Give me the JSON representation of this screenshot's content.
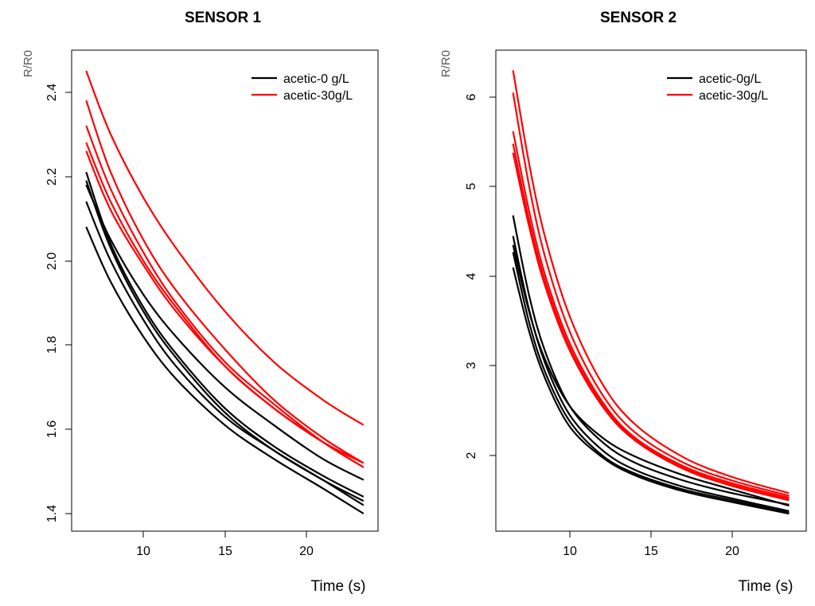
{
  "chart_data": [
    {
      "type": "line",
      "title": "SENSOR 1",
      "xlabel": "Time (s)",
      "ylabel": "R/R0",
      "xlim": [
        5.5,
        24.5
      ],
      "ylim": [
        1.38,
        2.5
      ],
      "xticks": [
        "10",
        "15",
        "20"
      ],
      "yticks": [
        "1.4",
        "1.6",
        "1.8",
        "2.0",
        "2.2",
        "2.4"
      ],
      "legend_position": "top-right",
      "legend": [
        {
          "label": "acetic-0 g/L",
          "color": "#000000"
        },
        {
          "label": "acetic-30g/L",
          "color": "#ff0000"
        }
      ],
      "series": [
        {
          "name": "acetic-0 g/L",
          "color": "#000000",
          "x": [
            6.5,
            8,
            10,
            12,
            15,
            18,
            21,
            23.5
          ],
          "values": [
            2.21,
            2.04,
            1.89,
            1.78,
            1.65,
            1.56,
            1.49,
            1.44
          ]
        },
        {
          "name": "acetic-0 g/L",
          "color": "#000000",
          "x": [
            6.5,
            8,
            10,
            12,
            15,
            18,
            21,
            23.5
          ],
          "values": [
            2.19,
            2.03,
            1.88,
            1.77,
            1.64,
            1.55,
            1.48,
            1.43
          ]
        },
        {
          "name": "acetic-0 g/L",
          "color": "#000000",
          "x": [
            6.5,
            8,
            10,
            12,
            15,
            18,
            21,
            23.5
          ],
          "values": [
            2.14,
            2.0,
            1.86,
            1.75,
            1.63,
            1.55,
            1.48,
            1.42
          ]
        },
        {
          "name": "acetic-0 g/L",
          "color": "#000000",
          "x": [
            6.5,
            8,
            10,
            12,
            15,
            18,
            21,
            23.5
          ],
          "values": [
            2.08,
            1.95,
            1.82,
            1.72,
            1.61,
            1.53,
            1.46,
            1.4
          ]
        },
        {
          "name": "acetic-0 g/L",
          "color": "#000000",
          "x": [
            6.5,
            8,
            10,
            12,
            15,
            18,
            21,
            23.5
          ],
          "values": [
            2.18,
            2.05,
            1.92,
            1.82,
            1.7,
            1.61,
            1.53,
            1.48
          ]
        },
        {
          "name": "acetic-30g/L",
          "color": "#ff0000",
          "x": [
            6.5,
            8,
            10,
            12,
            15,
            18,
            21,
            23.5
          ],
          "values": [
            2.45,
            2.3,
            2.15,
            2.03,
            1.88,
            1.76,
            1.67,
            1.61
          ]
        },
        {
          "name": "acetic-30g/L",
          "color": "#ff0000",
          "x": [
            6.5,
            8,
            10,
            12,
            15,
            18,
            21,
            23.5
          ],
          "values": [
            2.38,
            2.21,
            2.05,
            1.93,
            1.79,
            1.67,
            1.58,
            1.52
          ]
        },
        {
          "name": "acetic-30g/L",
          "color": "#ff0000",
          "x": [
            6.5,
            8,
            10,
            12,
            15,
            18,
            21,
            23.5
          ],
          "values": [
            2.32,
            2.17,
            2.02,
            1.9,
            1.76,
            1.66,
            1.57,
            1.51
          ]
        },
        {
          "name": "acetic-30g/L",
          "color": "#ff0000",
          "x": [
            6.5,
            8,
            10,
            12,
            15,
            18,
            21,
            23.5
          ],
          "values": [
            2.28,
            2.14,
            2.0,
            1.89,
            1.75,
            1.65,
            1.57,
            1.51
          ]
        },
        {
          "name": "acetic-30g/L",
          "color": "#ff0000",
          "x": [
            6.5,
            8,
            10,
            12,
            15,
            18,
            21,
            23.5
          ],
          "values": [
            2.26,
            2.12,
            1.99,
            1.88,
            1.75,
            1.65,
            1.57,
            1.52
          ]
        }
      ]
    },
    {
      "type": "line",
      "title": "SENSOR 2",
      "xlabel": "Time (s)",
      "ylabel": "R/R0",
      "xlim": [
        5.5,
        24.5
      ],
      "ylim": [
        1.25,
        6.5
      ],
      "xticks": [
        "10",
        "15",
        "20"
      ],
      "yticks": [
        "2",
        "3",
        "4",
        "5",
        "6"
      ],
      "legend_position": "top-right",
      "legend": [
        {
          "label": "acetic-0g/L",
          "color": "#000000"
        },
        {
          "label": "acetic-30g/L",
          "color": "#ff0000"
        }
      ],
      "series": [
        {
          "name": "acetic-0g/L",
          "color": "#000000",
          "x": [
            6.5,
            7.5,
            8.5,
            10,
            12,
            14,
            17,
            20,
            23.5
          ],
          "values": [
            4.68,
            3.78,
            3.15,
            2.55,
            2.15,
            1.92,
            1.72,
            1.58,
            1.45
          ]
        },
        {
          "name": "acetic-0g/L",
          "color": "#000000",
          "x": [
            6.5,
            7.5,
            8.5,
            10,
            12,
            14,
            17,
            20,
            23.5
          ],
          "values": [
            4.45,
            3.62,
            3.02,
            2.45,
            2.06,
            1.84,
            1.65,
            1.52,
            1.38
          ]
        },
        {
          "name": "acetic-0g/L",
          "color": "#000000",
          "x": [
            6.5,
            7.5,
            8.5,
            10,
            12,
            14,
            17,
            20,
            23.5
          ],
          "values": [
            4.27,
            3.48,
            2.92,
            2.38,
            2.0,
            1.8,
            1.62,
            1.5,
            1.36
          ]
        },
        {
          "name": "acetic-0g/L",
          "color": "#000000",
          "x": [
            6.5,
            7.5,
            8.5,
            10,
            12,
            14,
            17,
            20,
            23.5
          ],
          "values": [
            4.1,
            3.38,
            2.85,
            2.32,
            1.98,
            1.78,
            1.6,
            1.48,
            1.35
          ]
        },
        {
          "name": "acetic-0g/L",
          "color": "#000000",
          "x": [
            6.5,
            7.5,
            8.5,
            10,
            12,
            14,
            17,
            20,
            23.5
          ],
          "values": [
            4.35,
            3.6,
            3.06,
            2.55,
            2.2,
            1.99,
            1.78,
            1.62,
            1.44
          ]
        },
        {
          "name": "acetic-30g/L",
          "color": "#ff0000",
          "x": [
            6.5,
            7.5,
            8.5,
            10,
            12,
            14,
            17,
            20,
            23.5
          ],
          "values": [
            6.3,
            5.25,
            4.42,
            3.55,
            2.8,
            2.35,
            1.98,
            1.76,
            1.58
          ]
        },
        {
          "name": "acetic-30g/L",
          "color": "#ff0000",
          "x": [
            6.5,
            7.5,
            8.5,
            10,
            12,
            14,
            17,
            20,
            23.5
          ],
          "values": [
            6.05,
            5.0,
            4.2,
            3.38,
            2.68,
            2.26,
            1.92,
            1.72,
            1.55
          ]
        },
        {
          "name": "acetic-30g/L",
          "color": "#ff0000",
          "x": [
            6.5,
            7.5,
            8.5,
            10,
            12,
            14,
            17,
            20,
            23.5
          ],
          "values": [
            5.62,
            4.72,
            4.0,
            3.25,
            2.6,
            2.2,
            1.88,
            1.69,
            1.53
          ]
        },
        {
          "name": "acetic-30g/L",
          "color": "#ff0000",
          "x": [
            6.5,
            7.5,
            8.5,
            10,
            12,
            14,
            17,
            20,
            23.5
          ],
          "values": [
            5.48,
            4.62,
            3.93,
            3.2,
            2.57,
            2.18,
            1.86,
            1.67,
            1.51
          ]
        },
        {
          "name": "acetic-30g/L",
          "color": "#ff0000",
          "x": [
            6.5,
            7.5,
            8.5,
            10,
            12,
            14,
            17,
            20,
            23.5
          ],
          "values": [
            5.38,
            4.55,
            3.88,
            3.17,
            2.55,
            2.17,
            1.85,
            1.66,
            1.5
          ]
        }
      ]
    }
  ]
}
